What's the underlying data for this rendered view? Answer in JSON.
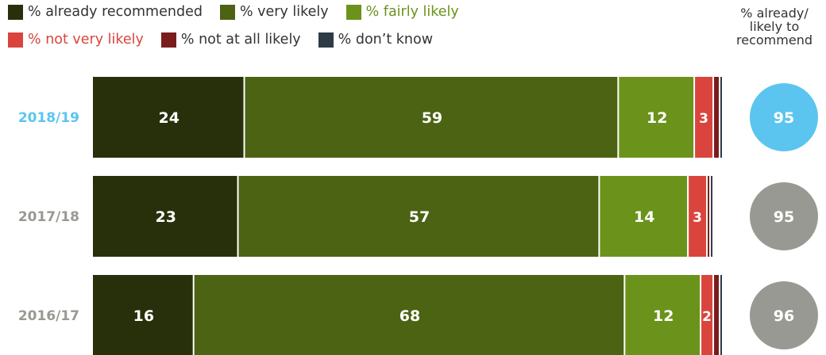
{
  "legend": {
    "items": [
      {
        "label": "% already recommended",
        "color": "#28300b",
        "text_color": "#333333"
      },
      {
        "label": "% very likely",
        "color": "#4b6313",
        "text_color": "#333333"
      },
      {
        "label": "% fairly likely",
        "color": "#6b931b",
        "text_color": "#6b931b"
      },
      {
        "label": "% not very likely",
        "color": "#d9453d",
        "text_color": "#d9453d"
      },
      {
        "label": "% not at all likely",
        "color": "#7a1c1c",
        "text_color": "#333333"
      },
      {
        "label": "% don’t know",
        "color": "#2e3a45",
        "text_color": "#333333"
      }
    ]
  },
  "total_header": {
    "line1": "% already/",
    "line2": "likely to",
    "line3": "recommend"
  },
  "chart_data": {
    "type": "bar",
    "orientation": "horizontal",
    "stacked": true,
    "categories": [
      "2018/19",
      "2017/18",
      "2016/17"
    ],
    "series": [
      {
        "name": "% already recommended",
        "color": "#28300b",
        "values": [
          24,
          23,
          16
        ]
      },
      {
        "name": "% very likely",
        "color": "#4b6313",
        "values": [
          59,
          57,
          68
        ]
      },
      {
        "name": "% fairly likely",
        "color": "#6b931b",
        "values": [
          12,
          14,
          12
        ]
      },
      {
        "name": "% not very likely",
        "color": "#d9453d",
        "values": [
          3,
          3,
          2
        ]
      },
      {
        "name": "% not at all likely",
        "color": "#7a1c1c",
        "values": [
          1,
          0.5,
          1
        ]
      },
      {
        "name": "% don’t know",
        "color": "#2e3a45",
        "values": [
          0.5,
          0.5,
          0.5
        ]
      }
    ],
    "data_labels": [
      [
        "24",
        "59",
        "12",
        "3",
        "",
        ""
      ],
      [
        "23",
        "57",
        "14",
        "3",
        "",
        ""
      ],
      [
        "16",
        "68",
        "12",
        "2",
        "",
        ""
      ]
    ],
    "totals": {
      "label": "% already/ likely to recommend",
      "values": [
        95,
        95,
        96
      ],
      "colors": [
        "#5bc5ef",
        "#999993",
        "#999993"
      ]
    },
    "category_label_colors": [
      "#5bc5ef",
      "#999993",
      "#999993"
    ],
    "xlim": [
      0,
      100
    ]
  }
}
